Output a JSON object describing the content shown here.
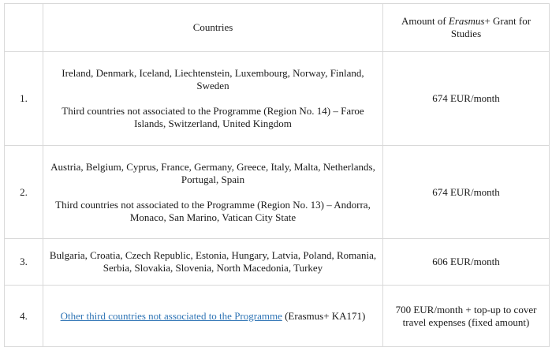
{
  "header": {
    "number": "",
    "countries": "Countries",
    "amount_prefix": "Amount of ",
    "amount_italic": "Erasmus",
    "amount_suffix": "+ Grant for Studies"
  },
  "rows": [
    {
      "number": "1.",
      "countries_main": "Ireland, Denmark, Iceland, Liechtenstein, Luxembourg, Norway, Finland, Sweden",
      "countries_extra": "Third countries not associated to the Programme (Region No. 14) – Faroe Islands, Switzerland, United Kingdom",
      "amount": "674 EUR/month"
    },
    {
      "number": "2.",
      "countries_main": "Austria, Belgium, Cyprus, France, Germany, Greece, Italy, Malta, Netherlands, Portugal, Spain",
      "countries_extra": "Third countries not associated to the Programme (Region No. 13) – Andorra, Monaco, San Marino, Vatican City State",
      "amount": "674 EUR/month"
    },
    {
      "number": "3.",
      "countries_main": "Bulgaria, Croatia, Czech Republic, Estonia, Hungary, Latvia, Poland, Romania, Serbia, Slovakia, Slovenia, North Macedonia, Turkey",
      "amount": "606 EUR/month"
    },
    {
      "number": "4.",
      "countries_link": "Other third countries not associated to the Programme",
      "countries_after_link": " (Erasmus+ KA171)",
      "amount": "700 EUR/month + top-up to cover travel expenses (fixed amount)"
    }
  ],
  "colors": {
    "link": "#2e74b5",
    "border": "#d9d9d9",
    "text": "#1a1a1a"
  }
}
